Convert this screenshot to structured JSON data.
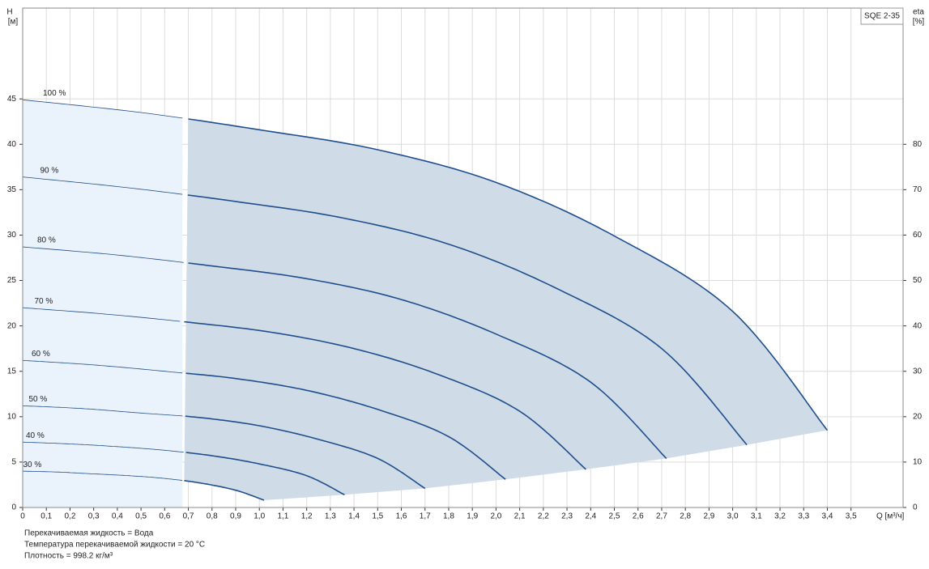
{
  "chart_data": {
    "type": "line",
    "title": "SQE 2-35",
    "y_label": "H",
    "y_unit": "[м]",
    "y2_label": "eta",
    "y2_unit": "[%]",
    "x_label": "Q [м³/ч]",
    "xlim": [
      0,
      3.72
    ],
    "ylim": [
      0,
      55
    ],
    "y2lim": [
      0,
      110
    ],
    "xticks": [
      0,
      {
        "value": 0.1,
        "label": "0,1"
      },
      {
        "value": 0.2,
        "label": "0,2"
      },
      {
        "value": 0.3,
        "label": "0,3"
      },
      {
        "value": 0.4,
        "label": "0,4"
      },
      {
        "value": 0.5,
        "label": "0,5"
      },
      {
        "value": 0.6,
        "label": "0,6"
      },
      {
        "value": 0.7,
        "label": "0,7"
      },
      {
        "value": 0.8,
        "label": "0,8"
      },
      {
        "value": 0.9,
        "label": "0,9"
      },
      {
        "value": 1.0,
        "label": "1,0"
      },
      {
        "value": 1.1,
        "label": "1,1"
      },
      {
        "value": 1.2,
        "label": "1,2"
      },
      {
        "value": 1.3,
        "label": "1,3"
      },
      {
        "value": 1.4,
        "label": "1,4"
      },
      {
        "value": 1.5,
        "label": "1,5"
      },
      {
        "value": 1.6,
        "label": "1,6"
      },
      {
        "value": 1.7,
        "label": "1,7"
      },
      {
        "value": 1.8,
        "label": "1,8"
      },
      {
        "value": 1.9,
        "label": "1,9"
      },
      {
        "value": 2.0,
        "label": "2,0"
      },
      {
        "value": 2.1,
        "label": "2,1"
      },
      {
        "value": 2.2,
        "label": "2,2"
      },
      {
        "value": 2.3,
        "label": "2,3"
      },
      {
        "value": 2.4,
        "label": "2,4"
      },
      {
        "value": 2.5,
        "label": "2,5"
      },
      {
        "value": 2.6,
        "label": "2,6"
      },
      {
        "value": 2.7,
        "label": "2,7"
      },
      {
        "value": 2.8,
        "label": "2,8"
      },
      {
        "value": 2.9,
        "label": "2,9"
      },
      {
        "value": 3.0,
        "label": "3,0"
      },
      {
        "value": 3.1,
        "label": "3,1"
      },
      {
        "value": 3.2,
        "label": "3,2"
      },
      {
        "value": 3.3,
        "label": "3,3"
      },
      {
        "value": 3.4,
        "label": "3,4"
      },
      {
        "value": 3.5,
        "label": "3,5"
      }
    ],
    "yticks": [
      0,
      5,
      10,
      15,
      20,
      25,
      30,
      35,
      40,
      45
    ],
    "y2ticks": [
      0,
      10,
      20,
      30,
      40,
      50,
      60,
      70,
      80
    ],
    "grid": true,
    "color": "#1f4e8c",
    "min_q": 0.68,
    "series": [
      {
        "name": "100 %",
        "x": [
          0,
          0.5,
          1.0,
          1.5,
          2.0,
          2.5,
          3.0,
          3.4
        ],
        "values": [
          44.9,
          43.5,
          41.6,
          39.4,
          35.8,
          29.9,
          21.6,
          8.5
        ]
      },
      {
        "name": "90 %",
        "x": [
          0,
          0.45,
          0.9,
          1.35,
          1.8,
          2.25,
          2.7,
          3.06
        ],
        "values": [
          36.4,
          35.2,
          33.7,
          31.9,
          29.0,
          24.2,
          17.5,
          6.9
        ]
      },
      {
        "name": "80 %",
        "x": [
          0,
          0.4,
          0.8,
          1.2,
          1.6,
          2.0,
          2.4,
          2.72
        ],
        "values": [
          28.7,
          27.8,
          26.6,
          25.2,
          22.9,
          19.1,
          13.8,
          5.4
        ]
      },
      {
        "name": "70 %",
        "x": [
          0,
          0.35,
          0.7,
          1.05,
          1.4,
          1.75,
          2.1,
          2.38
        ],
        "values": [
          22.0,
          21.3,
          20.4,
          19.3,
          17.5,
          14.7,
          10.6,
          4.2
        ]
      },
      {
        "name": "60 %",
        "x": [
          0,
          0.3,
          0.6,
          0.9,
          1.2,
          1.5,
          1.8,
          2.04
        ],
        "values": [
          16.2,
          15.7,
          15.0,
          14.2,
          12.9,
          10.8,
          7.8,
          3.1
        ]
      },
      {
        "name": "50 %",
        "x": [
          0,
          0.25,
          0.5,
          0.75,
          1.0,
          1.25,
          1.5,
          1.7
        ],
        "values": [
          11.2,
          10.9,
          10.4,
          9.9,
          9.0,
          7.5,
          5.4,
          2.1
        ]
      },
      {
        "name": "40 %",
        "x": [
          0,
          0.2,
          0.4,
          0.6,
          0.8,
          1.0,
          1.2,
          1.36
        ],
        "values": [
          7.2,
          7.0,
          6.7,
          6.3,
          5.7,
          4.8,
          3.5,
          1.4
        ]
      },
      {
        "name": "30 %",
        "x": [
          0,
          0.15,
          0.3,
          0.45,
          0.6,
          0.75,
          0.9,
          1.02
        ],
        "values": [
          4.0,
          3.9,
          3.7,
          3.5,
          3.2,
          2.7,
          1.9,
          0.8
        ]
      }
    ],
    "notes": [
      "Перекачиваемая жидкость = Вода",
      "Температура перекачиваемой жидкости = 20 °C",
      "Плотность = 998.2 кг/м³"
    ]
  }
}
